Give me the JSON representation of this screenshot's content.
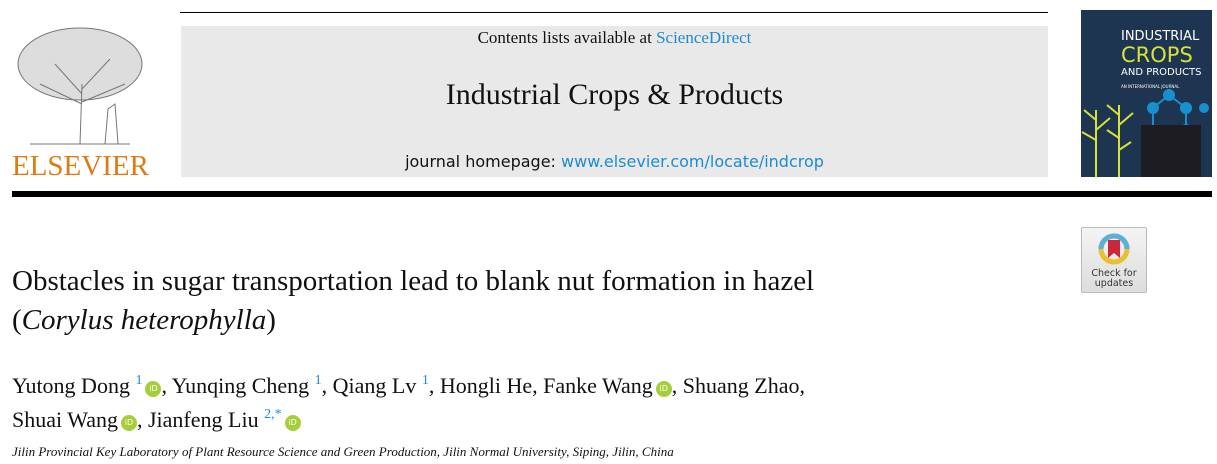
{
  "header": {
    "contents_prefix": "Contents lists available at ",
    "contents_link": "ScienceDirect",
    "journal_title": "Industrial Crops & Products",
    "homepage_prefix": "journal homepage: ",
    "homepage_link": "www.elsevier.com/locate/indcrop"
  },
  "publisher": {
    "name": "ELSEVIER",
    "color": "#e07a12"
  },
  "cover": {
    "line1": "INDUSTRIAL",
    "line2": "CROPS",
    "line3": "AND PRODUCTS",
    "line4": "AN INTERNATIONAL JOURNAL"
  },
  "check_updates": {
    "line1": "Check for",
    "line2": "updates"
  },
  "article": {
    "title_main": "Obstacles in sugar transportation lead to blank nut formation in hazel",
    "title_species": "Corylus heterophylla",
    "authors": [
      {
        "name": "Yutong Dong",
        "sup": "1",
        "orcid": true
      },
      {
        "name": "Yunqing Cheng",
        "sup": "1",
        "orcid": false
      },
      {
        "name": "Qiang Lv",
        "sup": "1",
        "orcid": false
      },
      {
        "name": "Hongli He",
        "sup": "",
        "orcid": false
      },
      {
        "name": "Fanke Wang",
        "sup": "",
        "orcid": true
      },
      {
        "name": "Shuang Zhao",
        "sup": "",
        "orcid": false
      },
      {
        "name": "Shuai Wang",
        "sup": "",
        "orcid": true
      },
      {
        "name": "Jianfeng Liu",
        "sup": "2,*",
        "orcid": true
      }
    ],
    "affiliation": "Jilin Provincial Key Laboratory of Plant Resource Science and Green Production, Jilin Normal University, Siping, Jilin, China"
  },
  "orcid_label": "iD"
}
